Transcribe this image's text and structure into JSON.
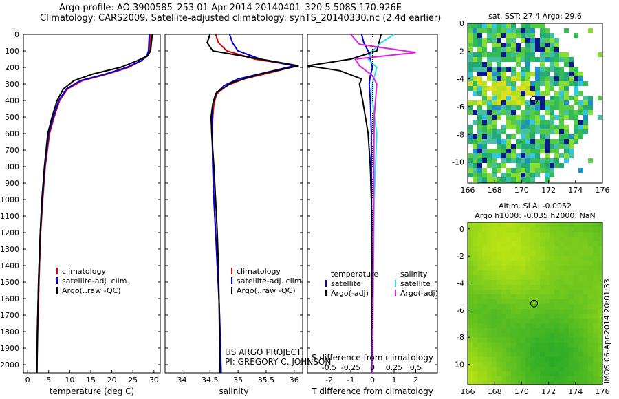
{
  "header": {
    "line1": "Argo profile: AO 3900585_253 01-Apr-2014 20140401_320 5.508S 170.926E",
    "line2": "Climatology: CARS2009. Satellite-adjusted climatology: synTS_20140330.nc (2.4d earlier)"
  },
  "colors": {
    "climatology": "#dd0000",
    "satellite": "#0000dd",
    "argo": "#000000",
    "satellite_s": "#33e0e8",
    "argo_s": "#e020e0"
  },
  "depth_axis": {
    "ylim": [
      0,
      2050
    ],
    "ticks": [
      0,
      100,
      200,
      300,
      400,
      500,
      600,
      700,
      800,
      900,
      1000,
      1100,
      1200,
      1300,
      1400,
      1500,
      1600,
      1700,
      1800,
      1900,
      2000
    ]
  },
  "annotations": {
    "project": "US ARGO PROJECT",
    "pi": "PI: GREGORY C. JOHNSON",
    "stamp": "IMOS 06-Apr-2014 20:01:33"
  },
  "chart_data": [
    {
      "type": "line",
      "name": "temperature-profile",
      "xlabel": "temperature (deg C)",
      "xlim": [
        -1,
        31.5
      ],
      "xticks": [
        0,
        5,
        10,
        15,
        20,
        25,
        30
      ],
      "legend": [
        "climatology",
        "satellite-adj. clim.",
        "Argo(..raw -QC)"
      ],
      "series": [
        {
          "name": "climatology",
          "color": "#dd0000",
          "x": [
            29.2,
            29.1,
            28.9,
            28.5,
            27.0,
            24.0,
            19.0,
            13.0,
            9.5,
            7.6,
            6.3,
            5.2,
            4.2,
            3.6,
            3.1,
            2.7,
            2.4,
            2.2
          ],
          "depth": [
            0,
            50,
            100,
            130,
            160,
            200,
            240,
            280,
            330,
            400,
            500,
            600,
            800,
            1000,
            1200,
            1500,
            1800,
            2050
          ]
        },
        {
          "name": "satellite-adj. clim.",
          "color": "#0000dd",
          "x": [
            28.9,
            28.8,
            28.7,
            28.3,
            27.0,
            23.5,
            18.5,
            12.5,
            9.2,
            7.4,
            6.1,
            5.0,
            4.1,
            3.5,
            3.0,
            2.6,
            2.35,
            2.2
          ],
          "depth": [
            0,
            50,
            100,
            130,
            160,
            200,
            240,
            280,
            330,
            400,
            500,
            600,
            800,
            1000,
            1200,
            1500,
            1800,
            2050
          ]
        },
        {
          "name": "Argo(..raw -QC)",
          "color": "#000000",
          "x": [
            29.6,
            29.4,
            29.2,
            28.5,
            26.0,
            22.0,
            15.5,
            11.0,
            8.5,
            7.0,
            5.8,
            4.8,
            4.0,
            3.4,
            3.0,
            2.6,
            2.3,
            2.2
          ],
          "depth": [
            0,
            50,
            100,
            130,
            160,
            200,
            240,
            280,
            330,
            400,
            500,
            600,
            800,
            1000,
            1200,
            1500,
            1800,
            2050
          ]
        }
      ]
    },
    {
      "type": "line",
      "name": "salinity-profile",
      "xlabel": "salinity",
      "xlim": [
        33.7,
        36.15
      ],
      "xticks": [
        34,
        34.5,
        35,
        35.5,
        36
      ],
      "legend": [
        "climatology",
        "satellite-adj. clim.",
        "Argo(..raw -QC)"
      ],
      "series": [
        {
          "name": "climatology",
          "color": "#dd0000",
          "x": [
            34.6,
            34.65,
            34.8,
            35.3,
            36.05,
            35.6,
            35.1,
            34.8,
            34.62,
            34.57,
            34.55,
            34.54,
            34.55,
            34.57,
            34.6,
            34.63,
            34.66,
            34.68,
            34.69
          ],
          "depth": [
            0,
            50,
            100,
            150,
            190,
            230,
            270,
            310,
            360,
            420,
            500,
            600,
            800,
            1000,
            1200,
            1400,
            1600,
            1800,
            2050
          ]
        },
        {
          "name": "satellite-adj. clim.",
          "color": "#0000dd",
          "x": [
            34.85,
            34.9,
            35.0,
            35.4,
            36.0,
            35.5,
            35.0,
            34.75,
            34.6,
            34.55,
            34.54,
            34.54,
            34.55,
            34.57,
            34.6,
            34.63,
            34.66,
            34.68,
            34.7
          ],
          "depth": [
            0,
            50,
            100,
            150,
            190,
            230,
            270,
            310,
            360,
            420,
            500,
            600,
            800,
            1000,
            1200,
            1400,
            1600,
            1800,
            2050
          ]
        },
        {
          "name": "Argo(..raw -QC)",
          "color": "#000000",
          "x": [
            34.5,
            34.45,
            34.55,
            35.4,
            36.08,
            35.4,
            34.9,
            34.62,
            34.55,
            34.52,
            34.53,
            34.55,
            34.57,
            34.6,
            34.63,
            34.65,
            34.66,
            34.68
          ],
          "depth": [
            0,
            50,
            100,
            150,
            190,
            240,
            290,
            350,
            420,
            500,
            600,
            700,
            800,
            1000,
            1200,
            1400,
            1600,
            2050
          ]
        }
      ]
    },
    {
      "type": "line",
      "name": "difference-profile",
      "xlabel": "T difference from climatology",
      "xlabel_top": "S difference from climatology",
      "xlim": [
        -3,
        3
      ],
      "xticks": [
        -2,
        -1,
        0,
        1,
        2
      ],
      "xticks_s": [
        -0.5,
        -0.25,
        0,
        0.25,
        0.5
      ],
      "legend_titles": [
        "temperature",
        "salinity"
      ],
      "legend": [
        "satellite",
        "Argo(-adj)",
        "satellite",
        "Argo(-adj)"
      ],
      "series": [
        {
          "name": "T satellite",
          "color": "#0000dd",
          "x": [
            -0.5,
            -0.4,
            -0.2,
            -0.1,
            0.0,
            -0.1,
            -0.15,
            -0.1,
            -0.05,
            -0.05,
            -0.03,
            -0.02,
            -0.02
          ],
          "depth": [
            0,
            50,
            100,
            150,
            200,
            250,
            300,
            400,
            600,
            800,
            1200,
            1600,
            2050
          ]
        },
        {
          "name": "T Argo(-adj)",
          "color": "#000000",
          "x": [
            0.4,
            0.3,
            0.2,
            -1.0,
            -3.0,
            -1.5,
            -0.5,
            -0.6,
            -0.45,
            -0.2,
            -0.1,
            -0.05,
            -0.02,
            0.0
          ],
          "depth": [
            0,
            50,
            100,
            150,
            190,
            220,
            270,
            300,
            400,
            600,
            800,
            1000,
            1600,
            2050
          ]
        },
        {
          "name": "S satellite",
          "color": "#33e0e8",
          "x": [
            0.25,
            0.1,
            0.0,
            -0.05,
            0.05,
            0.0,
            0.0,
            0.05,
            0.02,
            0.0
          ],
          "depth": [
            0,
            50,
            100,
            150,
            200,
            300,
            400,
            600,
            1000,
            2050
          ]
        },
        {
          "name": "S Argo(-adj)",
          "color": "#e020e0",
          "x": [
            -0.25,
            -0.15,
            0.5,
            -0.2,
            -0.15,
            0.0,
            0.05,
            0.02,
            0.0
          ],
          "depth": [
            0,
            60,
            110,
            150,
            190,
            250,
            300,
            500,
            2050
          ]
        }
      ]
    },
    {
      "type": "heatmap",
      "name": "sst-map",
      "title": "sat. SST: 27.4 Argo: 29.6",
      "xlim": [
        166,
        176
      ],
      "ylim": [
        -11.5,
        0
      ],
      "xticks": [
        166,
        168,
        170,
        172,
        174,
        176
      ],
      "yticks": [
        0,
        -2,
        -4,
        -6,
        -8,
        -10
      ],
      "float_position": {
        "lon": 170.926,
        "lat": -5.508
      }
    },
    {
      "type": "heatmap",
      "name": "sla-map",
      "title1": "Altim. SLA: -0.0052",
      "title2": "Argo h1000: -0.035 h2000: NaN",
      "xlim": [
        166,
        176
      ],
      "ylim": [
        -11.5,
        0.5
      ],
      "xticks": [
        166,
        168,
        170,
        172,
        174,
        176
      ],
      "yticks": [
        0,
        -2,
        -4,
        -6,
        -8,
        -10
      ],
      "float_position": {
        "lon": 170.926,
        "lat": -5.508
      }
    }
  ]
}
